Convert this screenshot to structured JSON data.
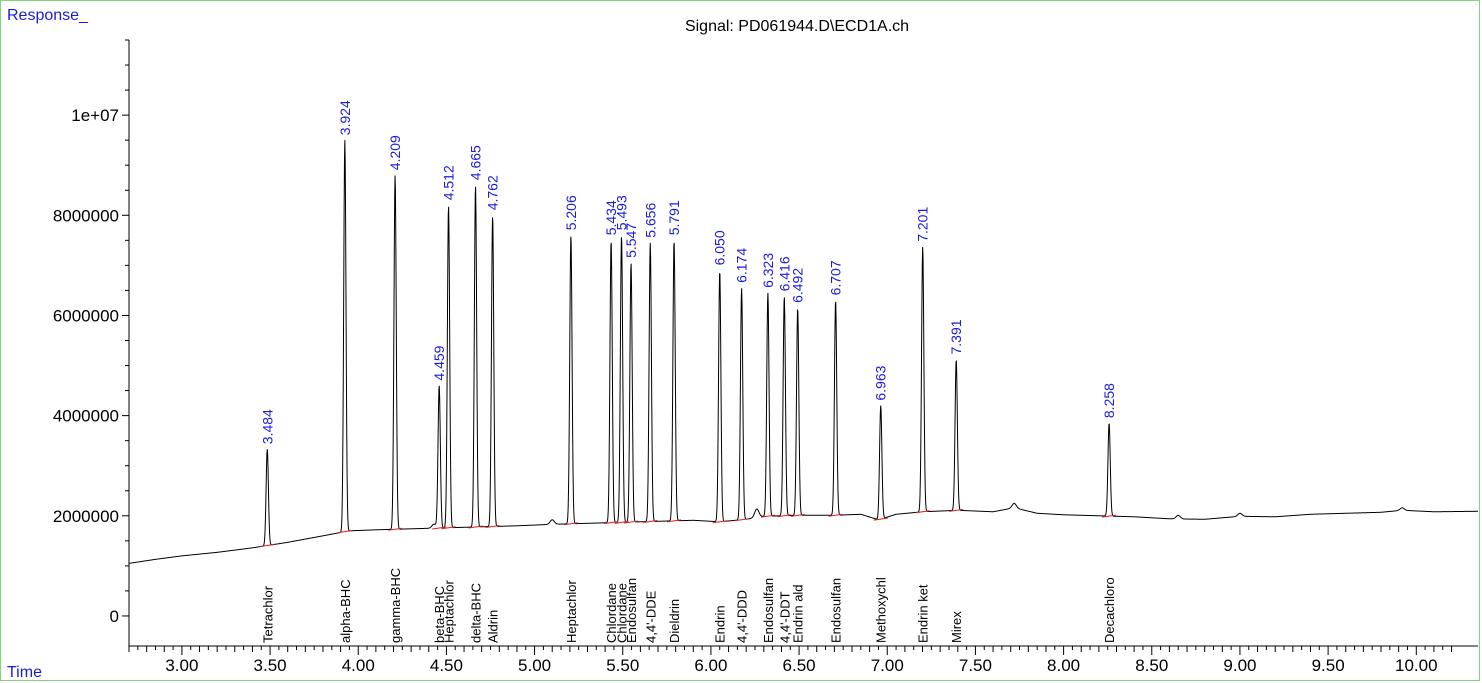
{
  "chart_data": {
    "type": "line",
    "title": "Signal: PD061944.D\\ECD1A.ch",
    "ylabel": "Response_",
    "xlabel": "Time",
    "xlim": [
      2.7,
      10.35
    ],
    "ylim": [
      -600000,
      11500000
    ],
    "x_ticks": [
      {
        "v": 3.0,
        "label": "3.00"
      },
      {
        "v": 3.5,
        "label": "3.50"
      },
      {
        "v": 4.0,
        "label": "4.00"
      },
      {
        "v": 4.5,
        "label": "4.50"
      },
      {
        "v": 5.0,
        "label": "5.00"
      },
      {
        "v": 5.5,
        "label": "5.50"
      },
      {
        "v": 6.0,
        "label": "6.00"
      },
      {
        "v": 6.5,
        "label": "6.50"
      },
      {
        "v": 7.0,
        "label": "7.00"
      },
      {
        "v": 7.5,
        "label": "7.50"
      },
      {
        "v": 8.0,
        "label": "8.00"
      },
      {
        "v": 8.5,
        "label": "8.50"
      },
      {
        "v": 9.0,
        "label": "9.00"
      },
      {
        "v": 9.5,
        "label": "9.50"
      },
      {
        "v": 10.0,
        "label": "10.00"
      }
    ],
    "y_ticks": [
      {
        "v": 0,
        "label": "0"
      },
      {
        "v": 2000000,
        "label": "2000000"
      },
      {
        "v": 4000000,
        "label": "4000000"
      },
      {
        "v": 6000000,
        "label": "6000000"
      },
      {
        "v": 8000000,
        "label": "8000000"
      },
      {
        "v": 10000000,
        "label": "1e+07"
      }
    ],
    "baseline": [
      [
        2.7,
        1050000
      ],
      [
        2.85,
        1130000
      ],
      [
        3.0,
        1200000
      ],
      [
        3.2,
        1270000
      ],
      [
        3.4,
        1360000
      ],
      [
        3.6,
        1470000
      ],
      [
        3.8,
        1600000
      ],
      [
        3.95,
        1700000
      ],
      [
        4.1,
        1720000
      ],
      [
        4.3,
        1740000
      ],
      [
        4.5,
        1760000
      ],
      [
        4.7,
        1780000
      ],
      [
        4.9,
        1800000
      ],
      [
        5.1,
        1830000
      ],
      [
        5.3,
        1850000
      ],
      [
        5.5,
        1870000
      ],
      [
        5.7,
        1890000
      ],
      [
        5.9,
        1910000
      ],
      [
        6.05,
        1880000
      ],
      [
        6.2,
        1930000
      ],
      [
        6.3,
        1990000
      ],
      [
        6.5,
        2010000
      ],
      [
        6.7,
        2010000
      ],
      [
        6.85,
        2030000
      ],
      [
        6.95,
        1920000
      ],
      [
        7.05,
        2030000
      ],
      [
        7.2,
        2080000
      ],
      [
        7.4,
        2110000
      ],
      [
        7.6,
        2080000
      ],
      [
        7.72,
        2160000
      ],
      [
        7.85,
        2050000
      ],
      [
        8.0,
        2020000
      ],
      [
        8.2,
        2000000
      ],
      [
        8.4,
        1980000
      ],
      [
        8.6,
        1940000
      ],
      [
        8.8,
        1930000
      ],
      [
        9.0,
        1990000
      ],
      [
        9.2,
        1980000
      ],
      [
        9.4,
        2030000
      ],
      [
        9.6,
        2050000
      ],
      [
        9.8,
        2070000
      ],
      [
        9.92,
        2110000
      ],
      [
        10.1,
        2080000
      ],
      [
        10.35,
        2090000
      ]
    ],
    "bumps": [
      [
        4.43,
        80000
      ],
      [
        5.1,
        90000
      ],
      [
        6.26,
        170000
      ],
      [
        7.72,
        90000
      ],
      [
        8.65,
        70000
      ],
      [
        9.0,
        60000
      ],
      [
        9.92,
        50000
      ]
    ],
    "peaks": [
      {
        "rt": 3.484,
        "rt_label": "3.484",
        "height": 3330000,
        "name": "Tetrachlor"
      },
      {
        "rt": 3.924,
        "rt_label": "3.924",
        "height": 9500000,
        "name": "alpha-BHC"
      },
      {
        "rt": 4.209,
        "rt_label": "4.209",
        "height": 8800000,
        "name": "gamma-BHC"
      },
      {
        "rt": 4.459,
        "rt_label": "4.459",
        "height": 4600000,
        "name": "beta-BHC"
      },
      {
        "rt": 4.512,
        "rt_label": "4.512",
        "height": 8200000,
        "name": "Heptachlor"
      },
      {
        "rt": 4.665,
        "rt_label": "4.665",
        "height": 8600000,
        "name": "delta-BHC"
      },
      {
        "rt": 4.762,
        "rt_label": "4.762",
        "height": 8000000,
        "name": "Aldrin"
      },
      {
        "rt": 5.206,
        "rt_label": "5.206",
        "height": 7600000,
        "name": "Heptachlor"
      },
      {
        "rt": 5.434,
        "rt_label": "5.434",
        "height": 7500000,
        "name": "Chlordane"
      },
      {
        "rt": 5.493,
        "rt_label": "5.493",
        "height": 7600000,
        "name": "Chlordane"
      },
      {
        "rt": 5.547,
        "rt_label": "5.547",
        "height": 7050000,
        "name": "Endosulfan"
      },
      {
        "rt": 5.656,
        "rt_label": "5.656",
        "height": 7450000,
        "name": "4,4'-DDE"
      },
      {
        "rt": 5.791,
        "rt_label": "5.791",
        "height": 7500000,
        "name": "Dieldrin"
      },
      {
        "rt": 6.05,
        "rt_label": "6.050",
        "height": 6900000,
        "name": "Endrin"
      },
      {
        "rt": 6.174,
        "rt_label": "6.174",
        "height": 6550000,
        "name": "4,4'-DDD"
      },
      {
        "rt": 6.323,
        "rt_label": "6.323",
        "height": 6450000,
        "name": "Endosulfan"
      },
      {
        "rt": 6.416,
        "rt_label": "6.416",
        "height": 6380000,
        "name": "4,4'-DDT"
      },
      {
        "rt": 6.492,
        "rt_label": "6.492",
        "height": 6150000,
        "name": "Endrin ald"
      },
      {
        "rt": 6.707,
        "rt_label": "6.707",
        "height": 6300000,
        "name": "Endosulfan"
      },
      {
        "rt": 6.963,
        "rt_label": "6.963",
        "height": 4200000,
        "name": "Methoxychl"
      },
      {
        "rt": 7.201,
        "rt_label": "7.201",
        "height": 7370000,
        "name": "Endrin ket"
      },
      {
        "rt": 7.391,
        "rt_label": "7.391",
        "height": 5120000,
        "name": "Mirex"
      },
      {
        "rt": 8.258,
        "rt_label": "8.258",
        "height": 3850000,
        "name": "Decachloro"
      }
    ],
    "colors": {
      "trace": "#000000",
      "labels": "#1a1adc",
      "baseline_marks": "#e02020",
      "frame": "#7fd67f"
    }
  }
}
